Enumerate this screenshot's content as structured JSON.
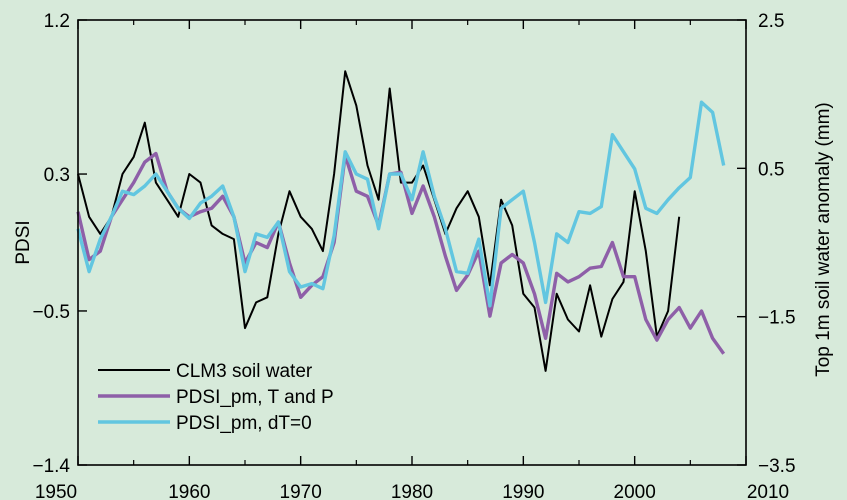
{
  "chart_data": {
    "type": "line",
    "title": "",
    "xlabel": "",
    "ylabel": "PDSI",
    "y2label": "Top 1m soil water anomaly (mm)",
    "xlim": [
      1950,
      2010
    ],
    "ylim": [
      -1.4,
      1.2
    ],
    "y2lim": [
      -3.5,
      2.5
    ],
    "xticks": [
      1950,
      1960,
      1970,
      1980,
      1990,
      2000,
      2010
    ],
    "yticks": [
      -1.4,
      -0.5,
      0.3,
      1.2
    ],
    "ytick_labels": [
      "−1.4",
      "−0.5",
      "0.3",
      "1.2"
    ],
    "y2ticks": [
      -3.5,
      -1.5,
      0.5,
      2.5
    ],
    "y2tick_labels": [
      "−3.5",
      "−1.5",
      "0.5",
      "2.5"
    ],
    "legend_position": "bottom-left",
    "grid": false,
    "series": [
      {
        "name": "CLM3 soil water",
        "color": "#000000",
        "axis": "left",
        "x": [
          1950,
          1951,
          1952,
          1953,
          1954,
          1955,
          1956,
          1957,
          1958,
          1959,
          1960,
          1961,
          1962,
          1963,
          1964,
          1965,
          1966,
          1967,
          1968,
          1969,
          1970,
          1971,
          1972,
          1973,
          1974,
          1975,
          1976,
          1977,
          1978,
          1979,
          1980,
          1981,
          1982,
          1983,
          1984,
          1985,
          1986,
          1987,
          1988,
          1989,
          1990,
          1991,
          1992,
          1993,
          1994,
          1995,
          1996,
          1997,
          1998,
          1999,
          2000,
          2001,
          2002,
          2003,
          2004
        ],
        "values": [
          0.3,
          0.05,
          -0.05,
          0.05,
          0.3,
          0.4,
          0.6,
          0.25,
          0.15,
          0.05,
          0.3,
          0.25,
          0.0,
          -0.05,
          -0.08,
          -0.6,
          -0.45,
          -0.42,
          -0.05,
          0.2,
          0.05,
          -0.02,
          -0.15,
          0.3,
          0.9,
          0.7,
          0.35,
          0.15,
          0.8,
          0.25,
          0.25,
          0.35,
          0.15,
          -0.05,
          0.1,
          0.2,
          0.05,
          -0.35,
          0.15,
          0.0,
          -0.4,
          -0.48,
          -0.85,
          -0.4,
          -0.55,
          -0.62,
          -0.35,
          -0.65,
          -0.43,
          -0.33,
          0.2,
          -0.15,
          -0.65,
          -0.5,
          0.05
        ]
      },
      {
        "name": "PDSI_pm, T and P",
        "color": "#8e5fa8",
        "axis": "left",
        "x": [
          1950,
          1951,
          1952,
          1953,
          1954,
          1955,
          1956,
          1957,
          1958,
          1959,
          1960,
          1961,
          1962,
          1963,
          1964,
          1965,
          1966,
          1967,
          1968,
          1969,
          1970,
          1971,
          1972,
          1973,
          1974,
          1975,
          1976,
          1977,
          1978,
          1979,
          1980,
          1981,
          1982,
          1983,
          1984,
          1985,
          1986,
          1987,
          1988,
          1989,
          1990,
          1991,
          1992,
          1993,
          1994,
          1995,
          1996,
          1997,
          1998,
          1999,
          2000,
          2001,
          2002,
          2003,
          2004,
          2005,
          2006,
          2007,
          2008
        ],
        "values": [
          0.08,
          -0.2,
          -0.15,
          0.05,
          0.15,
          0.25,
          0.37,
          0.42,
          0.2,
          0.1,
          0.05,
          0.08,
          0.1,
          0.17,
          0.05,
          -0.22,
          -0.1,
          -0.13,
          0.02,
          -0.22,
          -0.42,
          -0.35,
          -0.3,
          -0.1,
          0.41,
          0.2,
          0.17,
          0.0,
          0.3,
          0.31,
          0.07,
          0.23,
          0.05,
          -0.18,
          -0.38,
          -0.29,
          -0.15,
          -0.53,
          -0.22,
          -0.17,
          -0.22,
          -0.4,
          -0.66,
          -0.28,
          -0.33,
          -0.3,
          -0.25,
          -0.24,
          -0.1,
          -0.3,
          -0.3,
          -0.55,
          -0.67,
          -0.55,
          -0.48,
          -0.6,
          -0.5,
          -0.66,
          -0.75
        ]
      },
      {
        "name": "PDSI_pm, dT=0",
        "color": "#62c6e0",
        "axis": "left",
        "x": [
          1950,
          1951,
          1952,
          1953,
          1954,
          1955,
          1956,
          1957,
          1958,
          1959,
          1960,
          1961,
          1962,
          1963,
          1964,
          1965,
          1966,
          1967,
          1968,
          1969,
          1970,
          1971,
          1972,
          1973,
          1974,
          1975,
          1976,
          1977,
          1978,
          1979,
          1980,
          1981,
          1982,
          1983,
          1984,
          1985,
          1986,
          1987,
          1988,
          1989,
          1990,
          1991,
          1992,
          1993,
          1994,
          1995,
          1996,
          1997,
          1998,
          1999,
          2000,
          2001,
          2002,
          2003,
          2004,
          2005,
          2006,
          2007,
          2008
        ],
        "values": [
          -0.02,
          -0.27,
          -0.08,
          0.05,
          0.2,
          0.18,
          0.23,
          0.3,
          0.2,
          0.1,
          0.04,
          0.13,
          0.17,
          0.23,
          0.05,
          -0.27,
          -0.05,
          -0.07,
          0.02,
          -0.27,
          -0.36,
          -0.34,
          -0.37,
          -0.06,
          0.43,
          0.3,
          0.27,
          -0.02,
          0.3,
          0.3,
          0.15,
          0.43,
          0.17,
          -0.02,
          -0.27,
          -0.28,
          -0.08,
          -0.47,
          0.1,
          0.15,
          0.2,
          -0.1,
          -0.45,
          -0.05,
          -0.1,
          0.08,
          0.07,
          0.11,
          0.53,
          0.43,
          0.33,
          0.1,
          0.07,
          0.15,
          0.22,
          0.28,
          0.72,
          0.66,
          0.35
        ]
      }
    ]
  }
}
